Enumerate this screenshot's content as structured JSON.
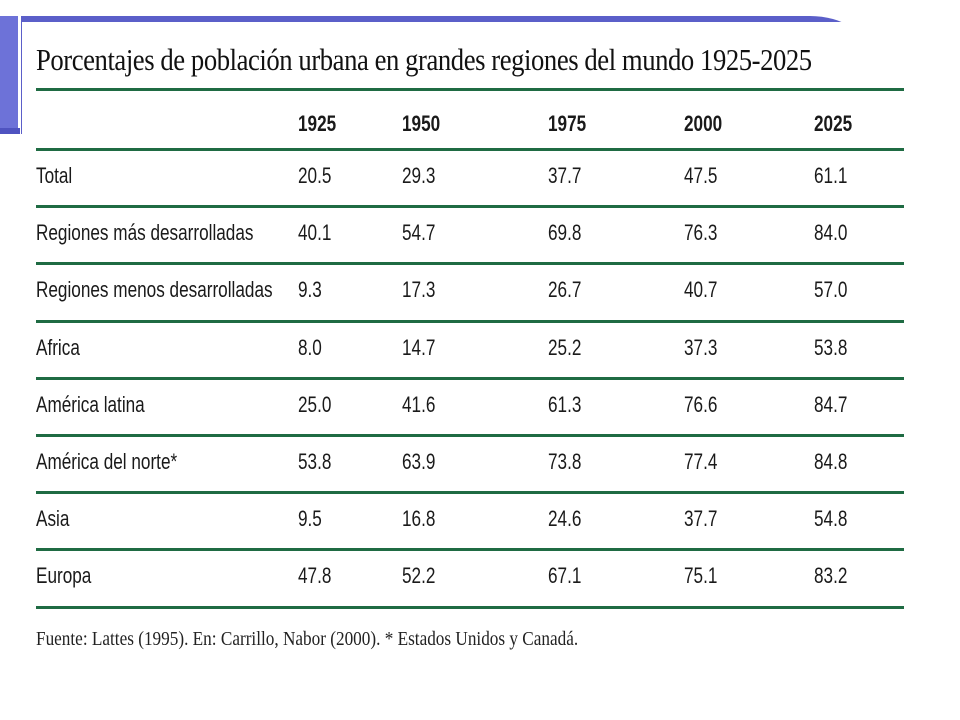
{
  "colors": {
    "slide_accent": "#5b5fc9",
    "table_rule": "#1f6b43"
  },
  "chart_data": {
    "type": "table",
    "title": "Porcentajes de población urbana en grandes regiones del mundo 1925-2025",
    "columns": [
      "1925",
      "1950",
      "1975",
      "2000",
      "2025"
    ],
    "rows": [
      {
        "label": "Total",
        "values": [
          "20.5",
          "29.3",
          "37.7",
          "47.5",
          "61.1"
        ]
      },
      {
        "label": "Regiones más desarrolladas",
        "values": [
          "40.1",
          "54.7",
          "69.8",
          "76.3",
          "84.0"
        ]
      },
      {
        "label": "Regiones menos desarrolladas",
        "values": [
          "9.3",
          "17.3",
          "26.7",
          "40.7",
          "57.0"
        ]
      },
      {
        "label": "Africa",
        "values": [
          "8.0",
          "14.7",
          "25.2",
          "37.3",
          "53.8"
        ]
      },
      {
        "label": "América latina",
        "values": [
          "25.0",
          "41.6",
          "61.3",
          "76.6",
          "84.7"
        ]
      },
      {
        "label": "América del norte*",
        "values": [
          "53.8",
          "63.9",
          "73.8",
          "77.4",
          "84.8"
        ]
      },
      {
        "label": "Asia",
        "values": [
          "9.5",
          "16.8",
          "24.6",
          "37.7",
          "54.8"
        ]
      },
      {
        "label": "Europa",
        "values": [
          "47.8",
          "52.2",
          "67.1",
          "75.1",
          "83.2"
        ]
      }
    ],
    "source": "Fuente: Lattes (1995). En: Carrillo, Nabor (2000). * Estados Unidos y Canadá."
  }
}
